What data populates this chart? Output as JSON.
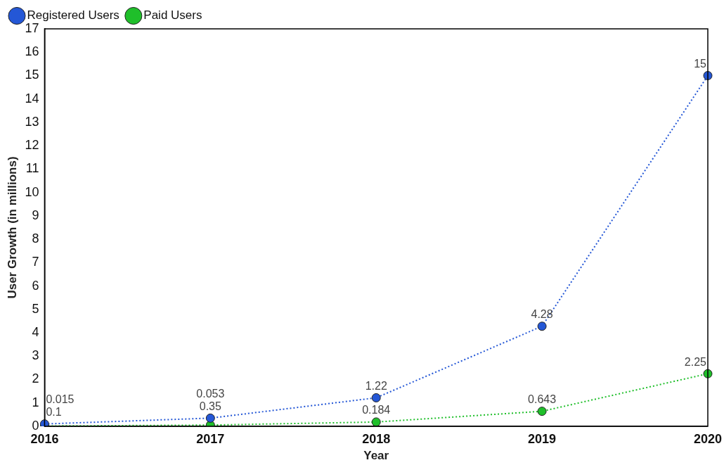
{
  "chart_data": {
    "type": "line",
    "xlabel": "Year",
    "ylabel": "User Growth (in millions)",
    "categories": [
      "2016",
      "2017",
      "2018",
      "2019",
      "2020"
    ],
    "series": [
      {
        "name": "Registered Users",
        "color": "#2457d6",
        "values": [
          0.1,
          0.35,
          1.22,
          4.28,
          15
        ]
      },
      {
        "name": "Paid Users",
        "color": "#1fbf2a",
        "values": [
          0.015,
          0.053,
          0.184,
          0.643,
          2.25
        ]
      }
    ],
    "ylim": [
      0,
      17
    ],
    "yticks": [
      0,
      1,
      2,
      3,
      4,
      5,
      6,
      7,
      8,
      9,
      10,
      11,
      12,
      13,
      14,
      15,
      16,
      17
    ],
    "grid": false,
    "legend": "top left",
    "marker": "circle",
    "line_style": "dotted",
    "data_labels": true
  }
}
